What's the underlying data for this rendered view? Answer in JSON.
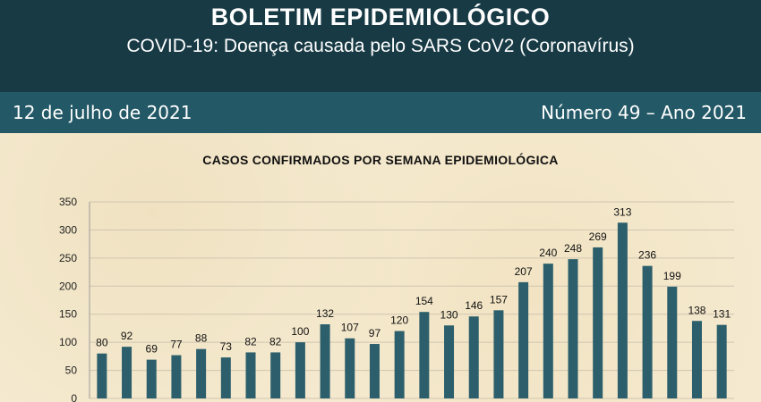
{
  "header": {
    "title": "BOLETIM EPIDEMIOLÓGICO",
    "subtitle": "COVID-19: Doença  causada pelo SARS CoV2 (Coronavírus)"
  },
  "infobar": {
    "date": "12 de julho de 2021",
    "number": "Número 49 – Ano 2021"
  },
  "colors": {
    "bar": "#2c5f6b",
    "header": "#173a45",
    "infobar": "#235866"
  },
  "chart_data": {
    "type": "bar",
    "title": "CASOS CONFIRMADOS POR SEMANA EPIDEMIOLÓGICA",
    "xlabel": "",
    "ylabel": "",
    "ylim": [
      0,
      350
    ],
    "yticks": [
      0,
      50,
      100,
      150,
      200,
      250,
      300,
      350
    ],
    "grid": true,
    "values": [
      80,
      92,
      69,
      77,
      88,
      73,
      82,
      82,
      100,
      132,
      107,
      97,
      120,
      154,
      130,
      146,
      157,
      207,
      240,
      248,
      269,
      313,
      236,
      199,
      138,
      131
    ]
  }
}
